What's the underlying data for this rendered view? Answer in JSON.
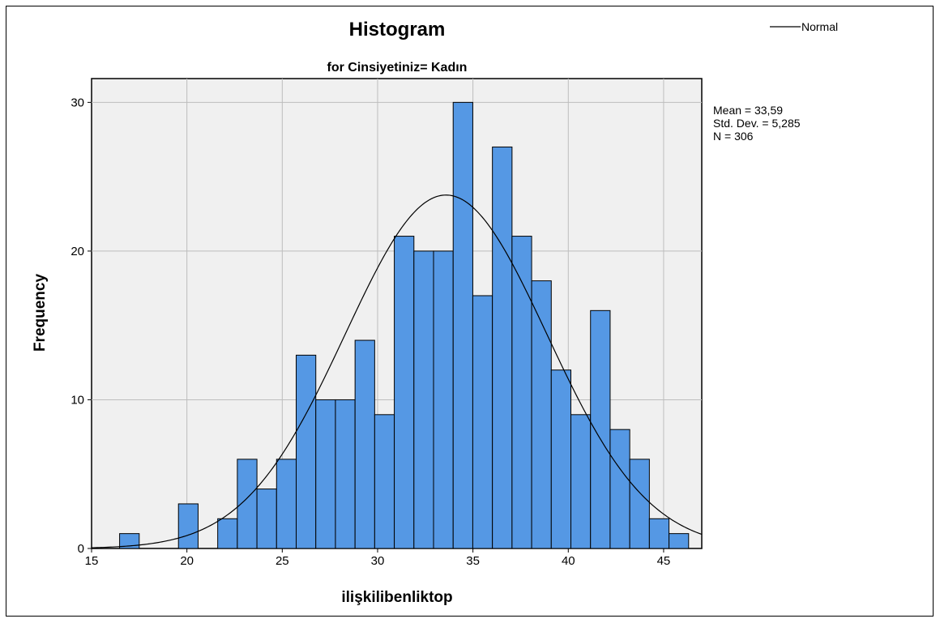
{
  "chart_data": {
    "type": "bar",
    "title": "Histogram",
    "subtitle": "for Cinsiyetiniz= Kadın",
    "xlabel": "ilişkilibenliktop",
    "ylabel": "Frequency",
    "xlim": [
      15,
      47
    ],
    "ylim": [
      0,
      31.6
    ],
    "x_ticks": [
      15,
      20,
      25,
      30,
      35,
      40,
      45
    ],
    "y_ticks": [
      0,
      10,
      20,
      30
    ],
    "bin_width": 1.029,
    "bin_start": 16.47,
    "values": [
      1,
      0,
      0,
      3,
      0,
      2,
      6,
      4,
      6,
      13,
      10,
      10,
      14,
      9,
      21,
      20,
      20,
      30,
      17,
      27,
      21,
      18,
      12,
      9,
      16,
      8,
      6,
      2,
      1
    ],
    "bar_color": "#5598e4",
    "grid": true,
    "normal_curve": {
      "mean": 33.59,
      "std_dev": 5.285,
      "n": 306
    },
    "legend": {
      "entries": [
        "Normal"
      ],
      "position": "top-right"
    },
    "stats_text": [
      "Mean = 33,59",
      "Std. Dev. = 5,285",
      "N = 306"
    ]
  }
}
